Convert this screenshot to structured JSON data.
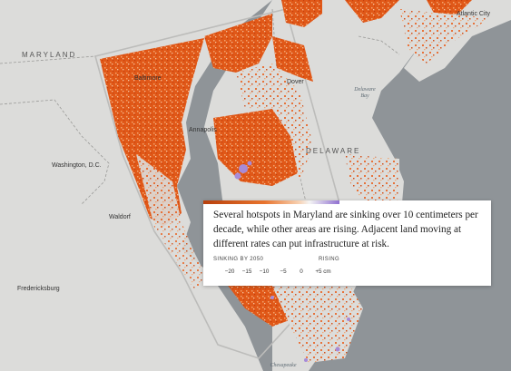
{
  "map": {
    "places": {
      "maryland": "MARYLAND",
      "delaware": "DELAWARE",
      "baltimore": "Baltimore",
      "annapolis": "Annapolis",
      "dover": "Dover",
      "atlantic_city": "Atlantic City",
      "washington": "Washington, D.C.",
      "waldorf": "Waldorf",
      "fredericksburg": "Fredericksburg"
    },
    "water": {
      "delaware_bay": "Delaware\nBay",
      "chesapeake": "Chesapeake"
    },
    "colors": {
      "land": "#dcdcda",
      "water": "#8f9498",
      "sinking_strong": "#c94a10",
      "sinking_mid": "#e4621c",
      "sinking_light": "#f19a5e",
      "rising": "#a78bd8"
    }
  },
  "callout": {
    "text": "Several hotspots in Maryland are sinking over 10 centimeters per decade, while other areas are rising. Adjacent land moving at different rates can put infrastructure at risk.",
    "legend": {
      "sinking_title": "SINKING BY 2050",
      "rising_title": "RISING",
      "ticks": [
        "−20",
        "−15",
        "−10",
        "−5",
        "0",
        "+5 cm"
      ],
      "tick_values_cm": [
        -20,
        -15,
        -10,
        -5,
        0,
        5
      ]
    }
  }
}
